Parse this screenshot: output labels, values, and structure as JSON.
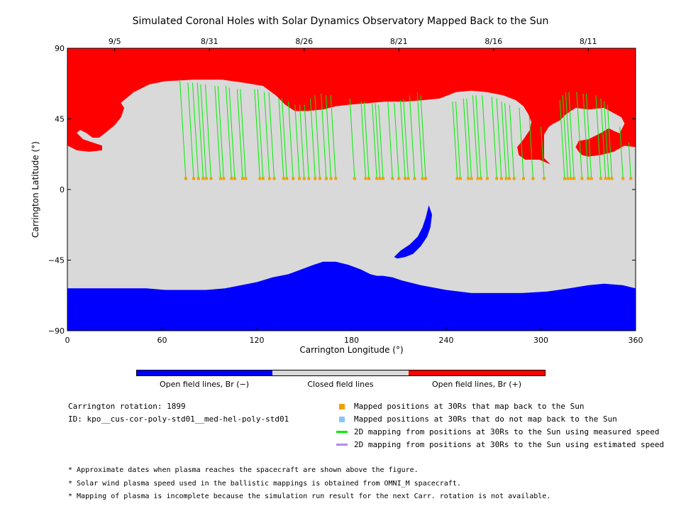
{
  "title": "Simulated Coronal Holes with Solar Dynamics Observatory Mapped Back to the Sun",
  "chart_data": {
    "type": "map",
    "xlabel": "Carrington Longitude (°)",
    "ylabel": "Carrington Latitude (°)",
    "xlim": [
      0,
      360
    ],
    "ylim": [
      -90,
      90
    ],
    "x_ticks": [
      "0",
      "60",
      "120",
      "180",
      "240",
      "300",
      "360"
    ],
    "x_tick_values": [
      0,
      60,
      120,
      180,
      240,
      300,
      360
    ],
    "y_ticks": [
      "90",
      "45",
      "0",
      "−45",
      "−90"
    ],
    "y_tick_values": [
      90,
      45,
      0,
      -45,
      -90
    ],
    "top_axis_dates": [
      {
        "label": "9/5",
        "lon": 30
      },
      {
        "label": "8/31",
        "lon": 90
      },
      {
        "label": "8/26",
        "lon": 150
      },
      {
        "label": "8/21",
        "lon": 210
      },
      {
        "label": "8/16",
        "lon": 270
      },
      {
        "label": "8/11",
        "lon": 330
      }
    ],
    "colors": {
      "open_negative": "#0000ff",
      "closed": "#d9d9d9",
      "open_positive": "#ff0000",
      "mapped_point": "#f0a000",
      "unmapped_point": "#87c4ff",
      "measured_line": "#00ee00",
      "estimated_line": "#b08ce8"
    },
    "mapped_latitude": 7,
    "mappings": [
      [
        75,
        70
      ],
      [
        80,
        68
      ],
      [
        83,
        68
      ],
      [
        86,
        68
      ],
      [
        88,
        67
      ],
      [
        91,
        67
      ],
      [
        97,
        66
      ],
      [
        99,
        66
      ],
      [
        104,
        66
      ],
      [
        106,
        65
      ],
      [
        111,
        64
      ],
      [
        113,
        64
      ],
      [
        122,
        64
      ],
      [
        124,
        64
      ],
      [
        128,
        62
      ],
      [
        131,
        62
      ],
      [
        137,
        58
      ],
      [
        139,
        58
      ],
      [
        143,
        56
      ],
      [
        147,
        54
      ],
      [
        150,
        54
      ],
      [
        153,
        54
      ],
      [
        157,
        58
      ],
      [
        160,
        60
      ],
      [
        164,
        61
      ],
      [
        167,
        60
      ],
      [
        170,
        60
      ],
      [
        182,
        58
      ],
      [
        189,
        56
      ],
      [
        191,
        56
      ],
      [
        196,
        55
      ],
      [
        198,
        55
      ],
      [
        200,
        54
      ],
      [
        206,
        56
      ],
      [
        210,
        55
      ],
      [
        214,
        57
      ],
      [
        216,
        58
      ],
      [
        220,
        60
      ],
      [
        225,
        62
      ],
      [
        227,
        60
      ],
      [
        247,
        56
      ],
      [
        249,
        56
      ],
      [
        254,
        58
      ],
      [
        256,
        58
      ],
      [
        260,
        60
      ],
      [
        262,
        60
      ],
      [
        266,
        60
      ],
      [
        272,
        59
      ],
      [
        275,
        58
      ],
      [
        278,
        56
      ],
      [
        280,
        55
      ],
      [
        283,
        54
      ],
      [
        289,
        52
      ],
      [
        295,
        46
      ],
      [
        302,
        40
      ],
      [
        315,
        57
      ],
      [
        317,
        60
      ],
      [
        319,
        62
      ],
      [
        321,
        62
      ],
      [
        326,
        62
      ],
      [
        330,
        61
      ],
      [
        332,
        61
      ],
      [
        338,
        60
      ],
      [
        341,
        58
      ],
      [
        343,
        56
      ],
      [
        345,
        54
      ],
      [
        352,
        40
      ],
      [
        357,
        30
      ]
    ],
    "legend": {
      "colorbar": [
        "Open field lines, Br (−)",
        "Closed field lines",
        "Open field lines, Br (+)"
      ],
      "mapped": "Mapped positions at 30Rs that map back to the Sun",
      "unmapped": "Mapped positions at 30Rs that do not map back to the Sun",
      "measured": "2D mapping from positions at 30Rs to the Sun using measured speed",
      "estimated": "2D mapping from positions at 30Rs to the Sun using estimated speed"
    }
  },
  "info": {
    "rotation": "Carrington rotation: 1899",
    "id": "ID: kpo__cus-cor-poly-std01__med-hel-poly-std01"
  },
  "notes": [
    "* Approximate dates when plasma reaches the spacecraft are shown above the figure.",
    "* Solar wind plasma speed used in the ballistic mappings is obtained from OMNI_M spacecraft.",
    "* Mapping of plasma is incomplete because the simulation run result for the next Carr. rotation is not available."
  ]
}
